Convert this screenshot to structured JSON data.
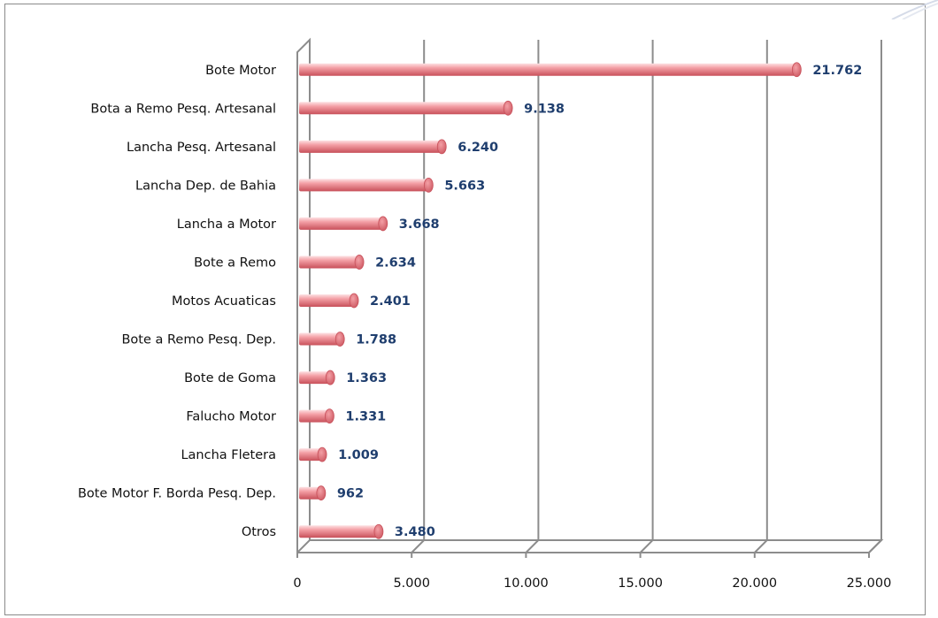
{
  "chart_data": {
    "type": "bar",
    "orientation": "horizontal",
    "categories": [
      "Bote Motor",
      "Bota a Remo Pesq. Artesanal",
      "Lancha Pesq. Artesanal",
      "Lancha Dep. de Bahia",
      "Lancha a Motor",
      "Bote a Remo",
      "Motos Acuaticas",
      "Bote a Remo Pesq. Dep.",
      "Bote de Goma",
      "Falucho Motor",
      "Lancha Fletera",
      "Bote Motor F. Borda Pesq. Dep.",
      "Otros"
    ],
    "values": [
      21762,
      9138,
      6240,
      5663,
      3668,
      2634,
      2401,
      1788,
      1363,
      1331,
      1009,
      962,
      3480
    ],
    "value_labels": [
      "21.762",
      "9.138",
      "6.240",
      "5.663",
      "3.668",
      "2.634",
      "2.401",
      "1.788",
      "1.363",
      "1.331",
      "1.009",
      "962",
      "3.480"
    ],
    "xlim": [
      0,
      25000
    ],
    "xticks": [
      0,
      5000,
      10000,
      15000,
      20000,
      25000
    ],
    "xtick_labels": [
      "0",
      "5.000",
      "10.000",
      "15.000",
      "20.000",
      "25.000"
    ],
    "title": "",
    "xlabel": "",
    "ylabel": "",
    "grid": "vertical",
    "legend": "none",
    "colors": {
      "bar": "#f4a0a6",
      "bar_dark": "#c8505a",
      "bar_light": "#fde2e4",
      "value_label": "#1f3e6e",
      "gridline": "#8c8c8c"
    }
  }
}
